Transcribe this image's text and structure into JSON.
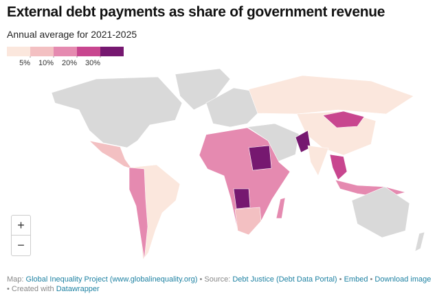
{
  "header": {
    "title": "External debt payments as share of government revenue",
    "subtitle": "Annual average for 2021-2025"
  },
  "legend": {
    "colors": [
      "#fbe7dd",
      "#f3c0c2",
      "#e58ab0",
      "#c8468f",
      "#761870"
    ],
    "ticks": [
      {
        "value": 5,
        "label": "5%"
      },
      {
        "value": 10,
        "label": "10%"
      },
      {
        "value": 20,
        "label": "20%"
      },
      {
        "value": 30,
        "label": "30%"
      }
    ]
  },
  "zoom": {
    "in": "+",
    "out": "−"
  },
  "footer": {
    "parts": [
      {
        "text": "Map:",
        "link": false
      },
      {
        "text": "Global Inequality Project (www.globalinequality.org)",
        "link": true
      },
      {
        "text": "• Source:",
        "link": false
      },
      {
        "text": "Debt Justice (Debt Data Portal)",
        "link": true
      },
      {
        "text": "•",
        "link": false
      },
      {
        "text": "Embed",
        "link": true
      },
      {
        "text": "•",
        "link": false
      },
      {
        "text": "Download image",
        "link": true
      },
      {
        "text": "• Created with",
        "link": false
      },
      {
        "text": "Datawrapper",
        "link": true
      }
    ]
  }
}
